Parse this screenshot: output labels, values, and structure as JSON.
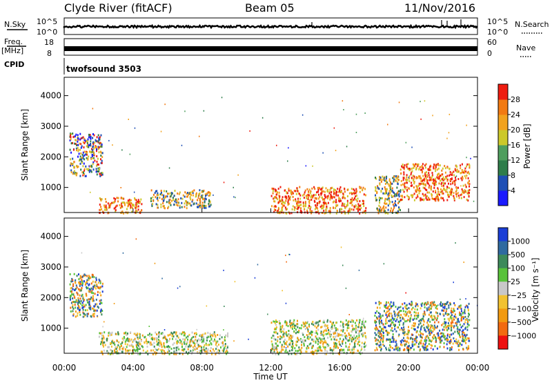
{
  "header": {
    "title": "Clyde River (fitACF)",
    "beam": "Beam 05",
    "date": "11/Nov/2016"
  },
  "left_labels": {
    "nsky": "N.Sky",
    "freq": "Freq.",
    "mhz": "[MHz]",
    "cpid": "CPID"
  },
  "right_labels": {
    "nsearch": "N.Search",
    "nave": "Nave"
  },
  "noise_ticks": {
    "left_top": "10^5",
    "left_bottom": "10^0",
    "right_top": "10^5",
    "right_bottom": "10^0"
  },
  "freq_ticks": {
    "left_top": "18",
    "left_bottom": "8",
    "right_top": "60",
    "right_bottom": "0"
  },
  "cpid_text": "twofsound 3503",
  "chart_data": [
    {
      "type": "heatmap",
      "name": "power",
      "ylabel": "Slant Range [km]",
      "xlabel": "Time UT",
      "ylim": [
        180,
        4600
      ],
      "xlim": [
        0,
        24
      ],
      "y_ticks": [
        "1000",
        "2000",
        "3000",
        "4000"
      ],
      "x_ticks": [
        "00:00",
        "04:00",
        "08:00",
        "12:00",
        "16:00",
        "20:00",
        "00:00"
      ],
      "colorbar": {
        "label": "Power [dB]",
        "ticks": [
          "4",
          "8",
          "12",
          "16",
          "20",
          "24",
          "28"
        ],
        "colors": [
          "#1a1aff",
          "#1e4fb5",
          "#2e7d4a",
          "#4f9e5e",
          "#ccc82a",
          "#f2a21e",
          "#f27a12",
          "#ee1c10"
        ]
      },
      "regions": [
        {
          "t0": 0.3,
          "t1": 2.2,
          "r0": 1400,
          "r1": 2800,
          "level": "mixed"
        },
        {
          "t0": 2.0,
          "t1": 4.5,
          "r0": 180,
          "r1": 700,
          "level": "high"
        },
        {
          "t0": 5.0,
          "t1": 8.5,
          "r0": 350,
          "r1": 950,
          "level": "mid"
        },
        {
          "t0": 12.0,
          "t1": 17.5,
          "r0": 180,
          "r1": 1050,
          "level": "high"
        },
        {
          "t0": 18.0,
          "t1": 19.5,
          "r0": 180,
          "r1": 1400,
          "level": "mid"
        },
        {
          "t0": 19.5,
          "t1": 23.5,
          "r0": 600,
          "r1": 1800,
          "level": "high"
        }
      ]
    },
    {
      "type": "heatmap",
      "name": "velocity",
      "ylabel": "Slant Range [km]",
      "xlabel": "Time UT",
      "ylim": [
        180,
        4600
      ],
      "xlim": [
        0,
        24
      ],
      "y_ticks": [
        "1000",
        "2000",
        "3000",
        "4000"
      ],
      "x_ticks": [
        "00:00",
        "04:00",
        "08:00",
        "12:00",
        "16:00",
        "20:00",
        "00:00"
      ],
      "colorbar": {
        "label": "Velocity [m s⁻¹]",
        "ticks": [
          "1000",
          "500",
          "100",
          "25",
          "−25",
          "−100",
          "−500",
          "−1000"
        ],
        "colors": [
          "#1a3ed6",
          "#2f6aa0",
          "#3d8a5a",
          "#58c23a",
          "#c8c8c8",
          "#f2c230",
          "#f29a10",
          "#f26a10",
          "#ee1010"
        ]
      },
      "regions": [
        {
          "t0": 0.3,
          "t1": 2.2,
          "r0": 1400,
          "r1": 2800,
          "level": "mixed"
        },
        {
          "t0": 2.0,
          "t1": 9.5,
          "r0": 180,
          "r1": 900,
          "level": "low"
        },
        {
          "t0": 12.0,
          "t1": 17.5,
          "r0": 180,
          "r1": 1300,
          "level": "low"
        },
        {
          "t0": 18.0,
          "t1": 23.5,
          "r0": 300,
          "r1": 1900,
          "level": "mixed"
        }
      ]
    }
  ]
}
